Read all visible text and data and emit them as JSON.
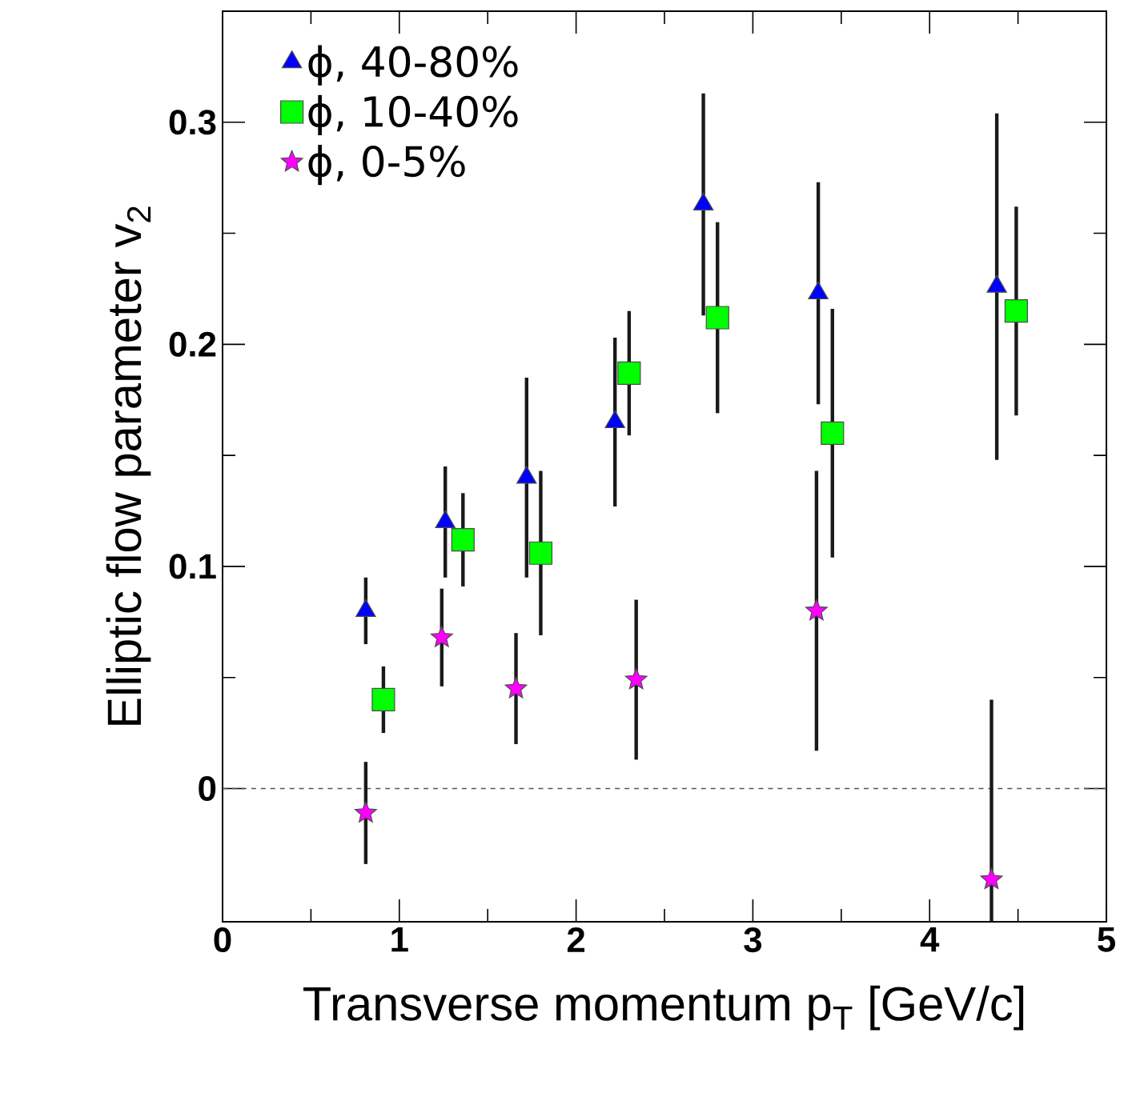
{
  "chart_data": {
    "type": "scatter",
    "xlabel": "Transverse momentum p$_{T}$ [GeV/c]",
    "ylabel": "Elliptic flow parameter v$_{2}$",
    "xlim": [
      0,
      5
    ],
    "ylim": [
      -0.06,
      0.35
    ],
    "xticks": [
      0,
      1,
      2,
      3,
      4,
      5
    ],
    "yticks": [
      0,
      0.1,
      0.2,
      0.3
    ],
    "legend": "top left",
    "grid": false,
    "ref_lines": [
      {
        "axis": "y",
        "value": 0,
        "line_style": "dashed",
        "color": "#555555"
      }
    ],
    "series": [
      {
        "name": "ϕ, 40-80%",
        "color": "#0000ff",
        "marker": "triangle",
        "x": [
          0.81,
          1.26,
          1.72,
          2.22,
          2.72,
          3.37,
          4.38
        ],
        "values": [
          0.08,
          0.12,
          0.14,
          0.165,
          0.263,
          0.223,
          0.226
        ],
        "errors": [
          0.015,
          0.025,
          0.045,
          0.038,
          0.05,
          0.05,
          0.078
        ]
      },
      {
        "name": "ϕ, 10-40%",
        "color": "#00ff00",
        "marker": "square",
        "x": [
          0.91,
          1.36,
          1.8,
          2.3,
          2.8,
          3.45,
          4.49
        ],
        "values": [
          0.04,
          0.112,
          0.106,
          0.187,
          0.212,
          0.16,
          0.215
        ],
        "errors": [
          0.015,
          0.021,
          0.037,
          0.028,
          0.043,
          0.056,
          0.047
        ]
      },
      {
        "name": "ϕ, 0-5%",
        "color": "#ff00ff",
        "marker": "star",
        "x": [
          0.81,
          1.24,
          1.66,
          2.34,
          3.36,
          4.35
        ],
        "values": [
          -0.011,
          0.068,
          0.045,
          0.049,
          0.08,
          -0.041
        ],
        "errors": [
          0.023,
          0.022,
          0.025,
          0.036,
          0.063,
          [
            -0.06,
            0.04
          ]
        ]
      }
    ]
  }
}
